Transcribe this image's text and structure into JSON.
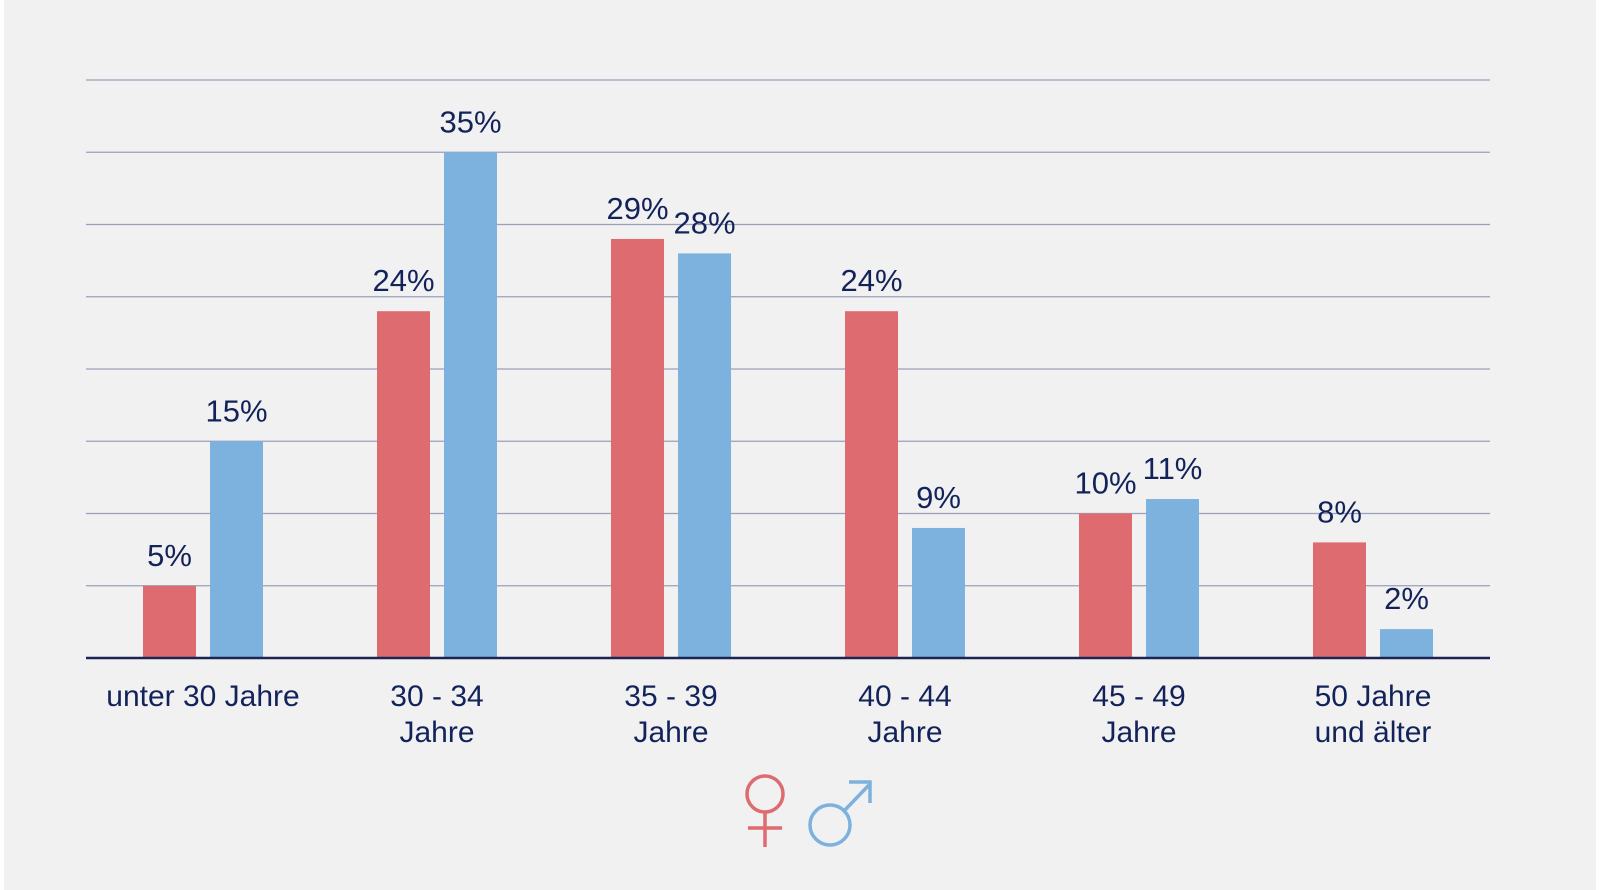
{
  "chart_data": {
    "type": "bar",
    "categories": [
      [
        "unter 30 Jahre"
      ],
      [
        "30 - 34",
        "Jahre"
      ],
      [
        "35 - 39",
        "Jahre"
      ],
      [
        "40 - 44",
        "Jahre"
      ],
      [
        "45 - 49",
        "Jahre"
      ],
      [
        "50 Jahre",
        "und älter"
      ]
    ],
    "series": [
      {
        "values": [
          5,
          24,
          29,
          24,
          10,
          8
        ],
        "labels": [
          "5%",
          "24%",
          "29%",
          "24%",
          "10%",
          "8%"
        ],
        "color": "#de6b70",
        "icon": "female-symbol-icon"
      },
      {
        "values": [
          15,
          35,
          28,
          9,
          11,
          2
        ],
        "labels": [
          "15%",
          "35%",
          "28%",
          "9%",
          "11%",
          "2%"
        ],
        "color": "#7db1de",
        "icon": "male-symbol-icon"
      }
    ],
    "ylim": [
      0,
      40
    ],
    "grid": true,
    "gridline_step": 5,
    "y_tick_labels_shown": false,
    "legend": "bottom-center",
    "gridline_color": "#9aa0b8",
    "axis_color": "#1b2452",
    "text_color": "#13235a"
  }
}
